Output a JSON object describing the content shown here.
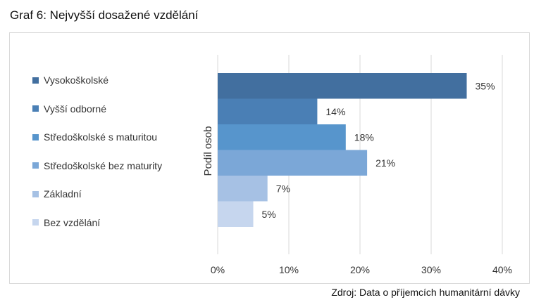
{
  "title": "Graf 6: Nejvyšší dosažené vzdělání",
  "source": "Zdroj: Data o příjemcích humanitární dávky",
  "chart_data": {
    "type": "bar",
    "orientation": "horizontal",
    "title": "Graf 6: Nejvyšší dosažené vzdělání",
    "ylabel": "Podíl osob",
    "xlabel": "",
    "categories": [
      "Vysokoškolské",
      "Vyšší odborné",
      "Středoškolské s maturitou",
      "Středoškolské bez maturity",
      "Základní",
      "Bez vzdělání"
    ],
    "values": [
      35,
      14,
      18,
      21,
      7,
      5
    ],
    "value_labels": [
      "35%",
      "14%",
      "18%",
      "21%",
      "7%",
      "5%"
    ],
    "colors": [
      "#426f9f",
      "#4a7fb5",
      "#5795cc",
      "#7ba7d7",
      "#a6c1e4",
      "#c6d6ee"
    ],
    "xlim": [
      0,
      40
    ],
    "xticks": [
      "0%",
      "10%",
      "20%",
      "30%",
      "40%"
    ],
    "grid": true,
    "legend_position": "left"
  }
}
